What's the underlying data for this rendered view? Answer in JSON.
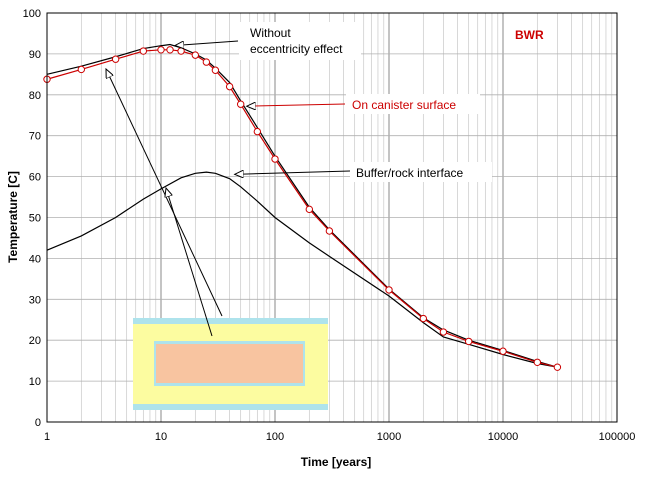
{
  "chart_data": {
    "type": "line",
    "title": "",
    "badge": "BWR",
    "xlabel": "Time [years]",
    "ylabel": "Temperature [C]",
    "xscale": "log",
    "xlim": [
      1,
      100000
    ],
    "ylim": [
      0,
      100
    ],
    "x_ticks": [
      "1",
      "10",
      "100",
      "1000",
      "10000",
      "100000"
    ],
    "y_ticks": [
      "0",
      "10",
      "20",
      "30",
      "40",
      "50",
      "60",
      "70",
      "80",
      "90",
      "100"
    ],
    "grid": true,
    "colors": {
      "canister": "#cc0000",
      "without_ecc": "#000000",
      "buffer": "#000000",
      "marker_fill": "#ffffff",
      "inset_cyan": "#aee3ec",
      "inset_yellow": "#fcfca0",
      "inset_orange": "#f8c4a0"
    },
    "series": [
      {
        "key": "on_canister",
        "markers": true,
        "points": [
          [
            1,
            83.8
          ],
          [
            2,
            86.2
          ],
          [
            4,
            88.7
          ],
          [
            7,
            90.7
          ],
          [
            10,
            91
          ],
          [
            12,
            91
          ],
          [
            15,
            90.7
          ],
          [
            20,
            89.7
          ],
          [
            25,
            88
          ],
          [
            30,
            86
          ],
          [
            40,
            82
          ],
          [
            50,
            77.7
          ],
          [
            70,
            71
          ],
          [
            100,
            64.3
          ],
          [
            200,
            52
          ],
          [
            300,
            46.7
          ],
          [
            1000,
            32.3
          ],
          [
            2000,
            25.3
          ],
          [
            3000,
            22
          ],
          [
            5000,
            19.7
          ],
          [
            10000,
            17.3
          ],
          [
            20000,
            14.6
          ],
          [
            30000,
            13.4
          ]
        ]
      },
      {
        "key": "without_ecc",
        "markers": false,
        "points": [
          [
            1,
            85
          ],
          [
            2,
            87
          ],
          [
            4,
            89.3
          ],
          [
            7,
            91.3
          ],
          [
            10,
            92
          ],
          [
            12,
            92.3
          ],
          [
            15,
            91.5
          ],
          [
            20,
            90
          ],
          [
            25,
            88.5
          ],
          [
            30,
            86.5
          ],
          [
            40,
            83
          ],
          [
            50,
            78.5
          ],
          [
            70,
            72
          ],
          [
            100,
            65
          ],
          [
            200,
            52.5
          ],
          [
            300,
            47
          ],
          [
            1000,
            32.5
          ],
          [
            2000,
            25.5
          ],
          [
            3000,
            22.5
          ],
          [
            5000,
            20
          ],
          [
            10000,
            17.5
          ],
          [
            20000,
            14.8
          ],
          [
            30000,
            13.4
          ]
        ]
      },
      {
        "key": "buffer_rock",
        "markers": false,
        "points": [
          [
            1,
            42
          ],
          [
            2,
            45.5
          ],
          [
            4,
            50
          ],
          [
            7,
            54.5
          ],
          [
            10,
            57
          ],
          [
            15,
            59.7
          ],
          [
            20,
            60.8
          ],
          [
            25,
            61.1
          ],
          [
            30,
            60.8
          ],
          [
            40,
            59.5
          ],
          [
            50,
            57.5
          ],
          [
            70,
            54
          ],
          [
            100,
            50
          ],
          [
            200,
            43.8
          ],
          [
            300,
            40.5
          ],
          [
            1000,
            30.8
          ],
          [
            2000,
            24.3
          ],
          [
            3000,
            20.8
          ],
          [
            5000,
            19
          ],
          [
            10000,
            16.5
          ],
          [
            20000,
            14.3
          ],
          [
            30000,
            13.4
          ]
        ]
      }
    ],
    "annotations": [
      {
        "key": "without",
        "lines": [
          "Without",
          "eccentricity effect"
        ],
        "arrow_to": [
          12,
          92.3
        ]
      },
      {
        "key": "canister",
        "lines": [
          "On canister surface"
        ],
        "arrow_to": [
          50,
          77.7
        ]
      },
      {
        "key": "buffer",
        "lines": [
          "Buffer/rock interface"
        ],
        "arrow_to": [
          40,
          60.8
        ]
      }
    ]
  }
}
